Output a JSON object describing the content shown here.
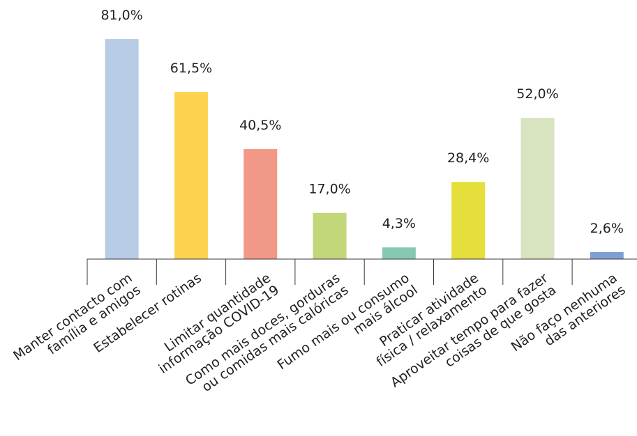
{
  "chart_data": {
    "type": "bar",
    "categories": [
      [
        "Manter contacto com",
        "família e amigos"
      ],
      [
        "Estabelecer rotinas"
      ],
      [
        "Limitar quantidade",
        "informação COVID-19"
      ],
      [
        "Como mais doces, gorduras",
        "ou comidas mais calóricas"
      ],
      [
        "Fumo mais ou consumo",
        "mais álcool"
      ],
      [
        "Praticar atividade",
        "física / relaxamento"
      ],
      [
        "Aproveitar tempo para fazer",
        "coisas de que gosta"
      ],
      [
        "Não faço nenhuma",
        "das anteriores"
      ]
    ],
    "values": [
      81.0,
      61.5,
      40.5,
      17.0,
      4.3,
      28.4,
      52.0,
      2.6
    ],
    "data_labels": [
      "81,0%",
      "61,5%",
      "40,5%",
      "17,0%",
      "4,3%",
      "28,4%",
      "52,0%",
      "2,6%"
    ],
    "bar_colors": [
      "#b8cce6",
      "#fdd24f",
      "#f29886",
      "#c2d67a",
      "#86c9b2",
      "#e4df3a",
      "#d8e3c0",
      "#7f9ed1"
    ],
    "ylim": [
      0,
      100
    ],
    "xlabel": "",
    "ylabel": "",
    "grid": false,
    "legend": "none"
  }
}
